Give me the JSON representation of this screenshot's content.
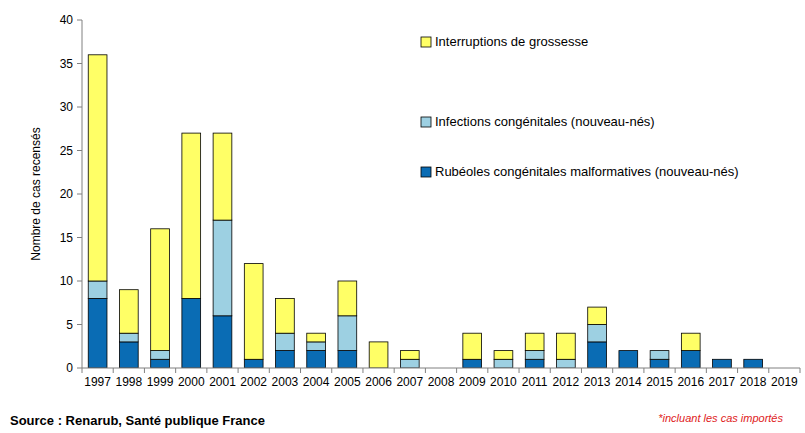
{
  "chart_data": {
    "type": "bar",
    "stacked": true,
    "y_label": "Nombre de cas recensés",
    "source": "Source : Renarub, Santé publique France",
    "note": "*incluant les cas importés",
    "categories": [
      "1997",
      "1998",
      "1999",
      "2000",
      "2001",
      "2002",
      "2003",
      "2004",
      "2005",
      "2006",
      "2007",
      "2008",
      "2009",
      "2010",
      "2011",
      "2012",
      "2013",
      "2014",
      "2015",
      "2016",
      "2017",
      "2018",
      "2019"
    ],
    "series": [
      {
        "name": "Rubéoles congénitales malformatives (nouveau-nés)",
        "color": "#0a6cb4",
        "values": [
          8,
          3,
          1,
          8,
          6,
          1,
          2,
          2,
          2,
          0,
          0,
          0,
          1,
          0,
          1,
          0,
          3,
          2,
          1,
          2,
          1,
          1,
          0
        ]
      },
      {
        "name": "Infections congénitales (nouveau-nés)",
        "color": "#9dd0e2",
        "values": [
          2,
          1,
          1,
          0,
          11,
          0,
          2,
          1,
          4,
          0,
          1,
          0,
          0,
          1,
          1,
          1,
          2,
          0,
          1,
          0,
          0,
          0,
          0
        ]
      },
      {
        "name": "Interruptions de grossesse",
        "color": "#ffff66",
        "values": [
          26,
          5,
          14,
          19,
          10,
          11,
          4,
          1,
          4,
          3,
          1,
          0,
          3,
          1,
          2,
          3,
          2,
          0,
          0,
          2,
          0,
          0,
          0
        ]
      }
    ],
    "ylim": [
      0,
      40
    ],
    "yticks": [
      0,
      5,
      10,
      15,
      20,
      25,
      30,
      35,
      40
    ],
    "grid": false,
    "legend": "upper right"
  }
}
